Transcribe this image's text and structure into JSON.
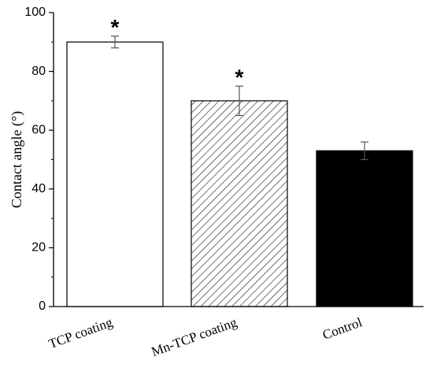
{
  "chart_data": {
    "type": "bar",
    "categories": [
      "TCP coating",
      "Mn-TCP coating",
      "Control"
    ],
    "values": [
      90,
      70,
      53
    ],
    "errors": [
      2,
      5,
      3
    ],
    "significance": [
      "*",
      "*",
      ""
    ],
    "fills": [
      "white",
      "hatched",
      "black"
    ],
    "ylabel": "Contact angle (°)",
    "xlabel": "",
    "title": "",
    "ylim": [
      0,
      100
    ],
    "yticks": [
      0,
      20,
      40,
      60,
      80,
      100
    ],
    "yticks_labels": [
      "0",
      "20",
      "40",
      "60",
      "80",
      "100"
    ],
    "grid": false,
    "legend": "none"
  }
}
